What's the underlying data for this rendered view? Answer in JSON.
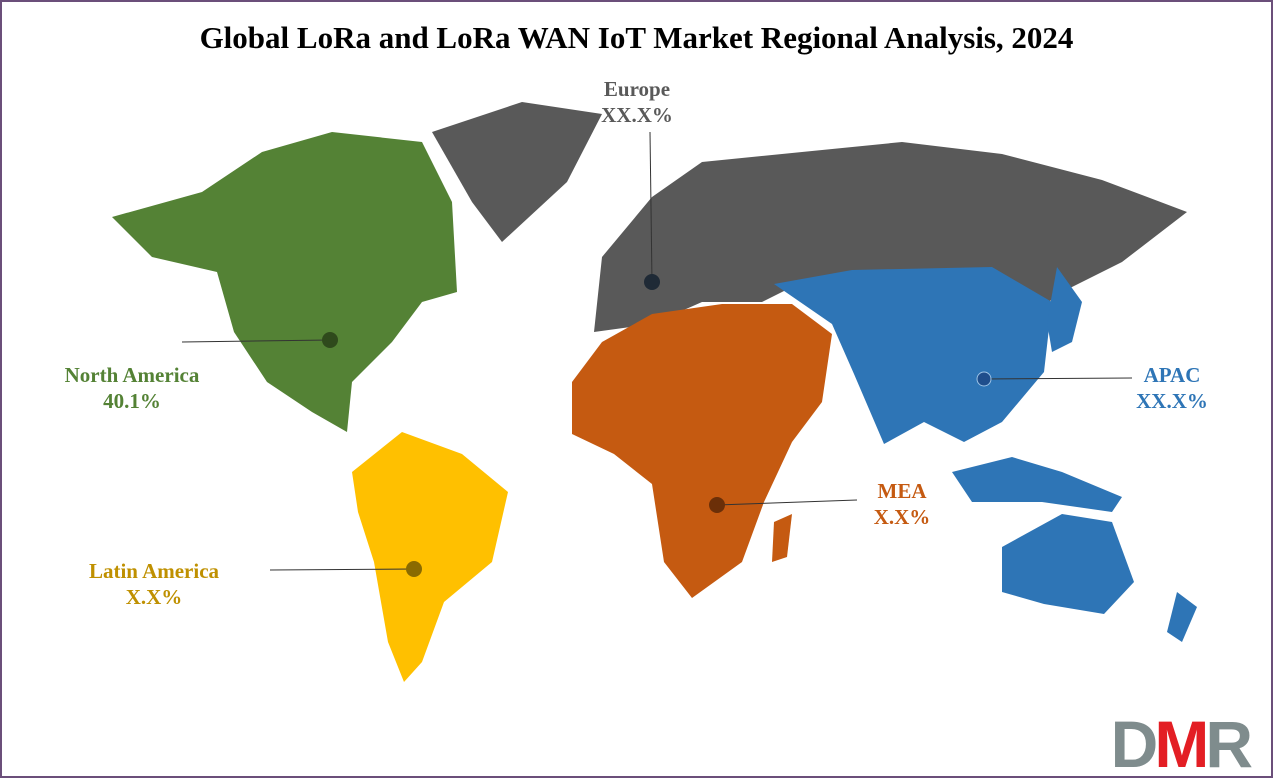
{
  "title": "Global LoRa and LoRa WAN IoT Market Regional Analysis, 2024",
  "regions": [
    {
      "name": "North America",
      "value": "40.1%",
      "color": "#548235",
      "label_color": "#548235"
    },
    {
      "name": "Europe",
      "value": "XX.X%",
      "color": "#595959",
      "label_color": "#595959"
    },
    {
      "name": "APAC",
      "value": "XX.X%",
      "color": "#2E75B6",
      "label_color": "#2E75B6"
    },
    {
      "name": "MEA",
      "value": "X.X%",
      "color": "#C55A11",
      "label_color": "#C55A11"
    },
    {
      "name": "Latin America",
      "value": "X.X%",
      "color": "#FFC000",
      "label_color": "#BF9000"
    }
  ],
  "logo": {
    "text": "DMR",
    "colors": [
      "#7f8c8d",
      "#e31e24",
      "#7f8c8d"
    ]
  }
}
